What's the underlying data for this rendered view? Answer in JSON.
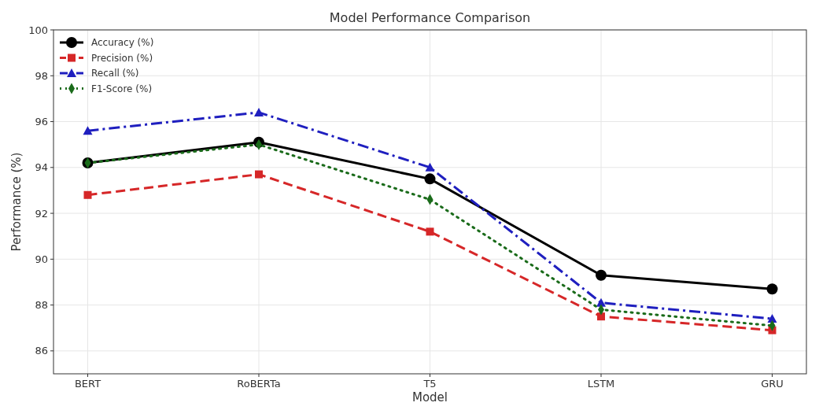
{
  "chart_data": {
    "type": "line",
    "title": "Model Performance Comparison",
    "xlabel": "Model",
    "ylabel": "Performance (%)",
    "categories": [
      "BERT",
      "RoBERTa",
      "T5",
      "LSTM",
      "GRU"
    ],
    "series": [
      {
        "name": "Accuracy (%)",
        "color": "#000000",
        "values": [
          94.2,
          95.1,
          93.5,
          89.3,
          88.7
        ],
        "marker": "circle",
        "line_style": "solid"
      },
      {
        "name": "Precision (%)",
        "color": "#d62728",
        "values": [
          92.8,
          93.7,
          91.2,
          87.5,
          86.9
        ],
        "marker": "square",
        "line_style": "dashed"
      },
      {
        "name": "Recall (%)",
        "color": "#1f1fbf",
        "values": [
          95.6,
          96.4,
          94.0,
          88.1,
          87.4
        ],
        "marker": "triangle",
        "line_style": "dashdot"
      },
      {
        "name": "F1-Score (%)",
        "color": "#1a6b1a",
        "values": [
          94.2,
          95.0,
          92.6,
          87.8,
          87.1
        ],
        "marker": "diamond",
        "line_style": "dotted"
      }
    ],
    "ylim": [
      85,
      100
    ],
    "yticks": [
      86,
      88,
      90,
      92,
      94,
      96,
      98,
      100
    ],
    "grid": true,
    "legend": "top left"
  }
}
